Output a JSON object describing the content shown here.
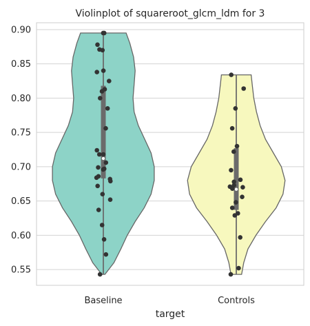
{
  "chart_data": {
    "type": "violin",
    "title": "Violinplot of squareroot_glcm_ldm for 3",
    "xlabel": "target",
    "ylabel": "",
    "ylim": [
      0.527,
      0.91
    ],
    "yticks": [
      "0.55",
      "0.60",
      "0.65",
      "0.70",
      "0.75",
      "0.80",
      "0.85",
      "0.90"
    ],
    "grid": true,
    "categories": [
      "Baseline",
      "Controls"
    ],
    "colors": {
      "Baseline": "#8dd3c7",
      "Controls": "#f7f8be",
      "outline": "#666666",
      "points": "#333333",
      "box": "#6b6b6b"
    },
    "series": [
      {
        "name": "Baseline",
        "min": 0.543,
        "max": 0.895,
        "q1": 0.683,
        "median": 0.712,
        "q3": 0.818,
        "density": [
          [
            0.543,
            0.03
          ],
          [
            0.56,
            0.2
          ],
          [
            0.58,
            0.33
          ],
          [
            0.6,
            0.45
          ],
          [
            0.62,
            0.6
          ],
          [
            0.64,
            0.77
          ],
          [
            0.66,
            0.9
          ],
          [
            0.68,
            0.96
          ],
          [
            0.7,
            0.96
          ],
          [
            0.72,
            0.9
          ],
          [
            0.74,
            0.78
          ],
          [
            0.76,
            0.66
          ],
          [
            0.78,
            0.58
          ],
          [
            0.8,
            0.56
          ],
          [
            0.82,
            0.58
          ],
          [
            0.84,
            0.6
          ],
          [
            0.86,
            0.57
          ],
          [
            0.88,
            0.5
          ],
          [
            0.895,
            0.43
          ]
        ],
        "points": [
          0.895,
          0.895,
          0.878,
          0.871,
          0.87,
          0.84,
          0.838,
          0.825,
          0.813,
          0.81,
          0.8,
          0.785,
          0.756,
          0.724,
          0.718,
          0.718,
          0.706,
          0.699,
          0.697,
          0.696,
          0.686,
          0.684,
          0.682,
          0.679,
          0.672,
          0.66,
          0.652,
          0.637,
          0.615,
          0.594,
          0.572,
          0.543
        ]
      },
      {
        "name": "Controls",
        "min": 0.543,
        "max": 0.834,
        "q1": 0.637,
        "median": 0.667,
        "q3": 0.727,
        "density": [
          [
            0.543,
            0.1
          ],
          [
            0.56,
            0.14
          ],
          [
            0.58,
            0.22
          ],
          [
            0.6,
            0.37
          ],
          [
            0.62,
            0.55
          ],
          [
            0.64,
            0.75
          ],
          [
            0.66,
            0.88
          ],
          [
            0.68,
            0.92
          ],
          [
            0.7,
            0.85
          ],
          [
            0.72,
            0.7
          ],
          [
            0.74,
            0.55
          ],
          [
            0.76,
            0.45
          ],
          [
            0.78,
            0.38
          ],
          [
            0.8,
            0.33
          ],
          [
            0.82,
            0.3
          ],
          [
            0.834,
            0.28
          ]
        ],
        "points": [
          0.834,
          0.814,
          0.785,
          0.756,
          0.73,
          0.722,
          0.695,
          0.681,
          0.678,
          0.673,
          0.671,
          0.67,
          0.668,
          0.656,
          0.648,
          0.64,
          0.632,
          0.629,
          0.597,
          0.552,
          0.543
        ]
      }
    ]
  }
}
